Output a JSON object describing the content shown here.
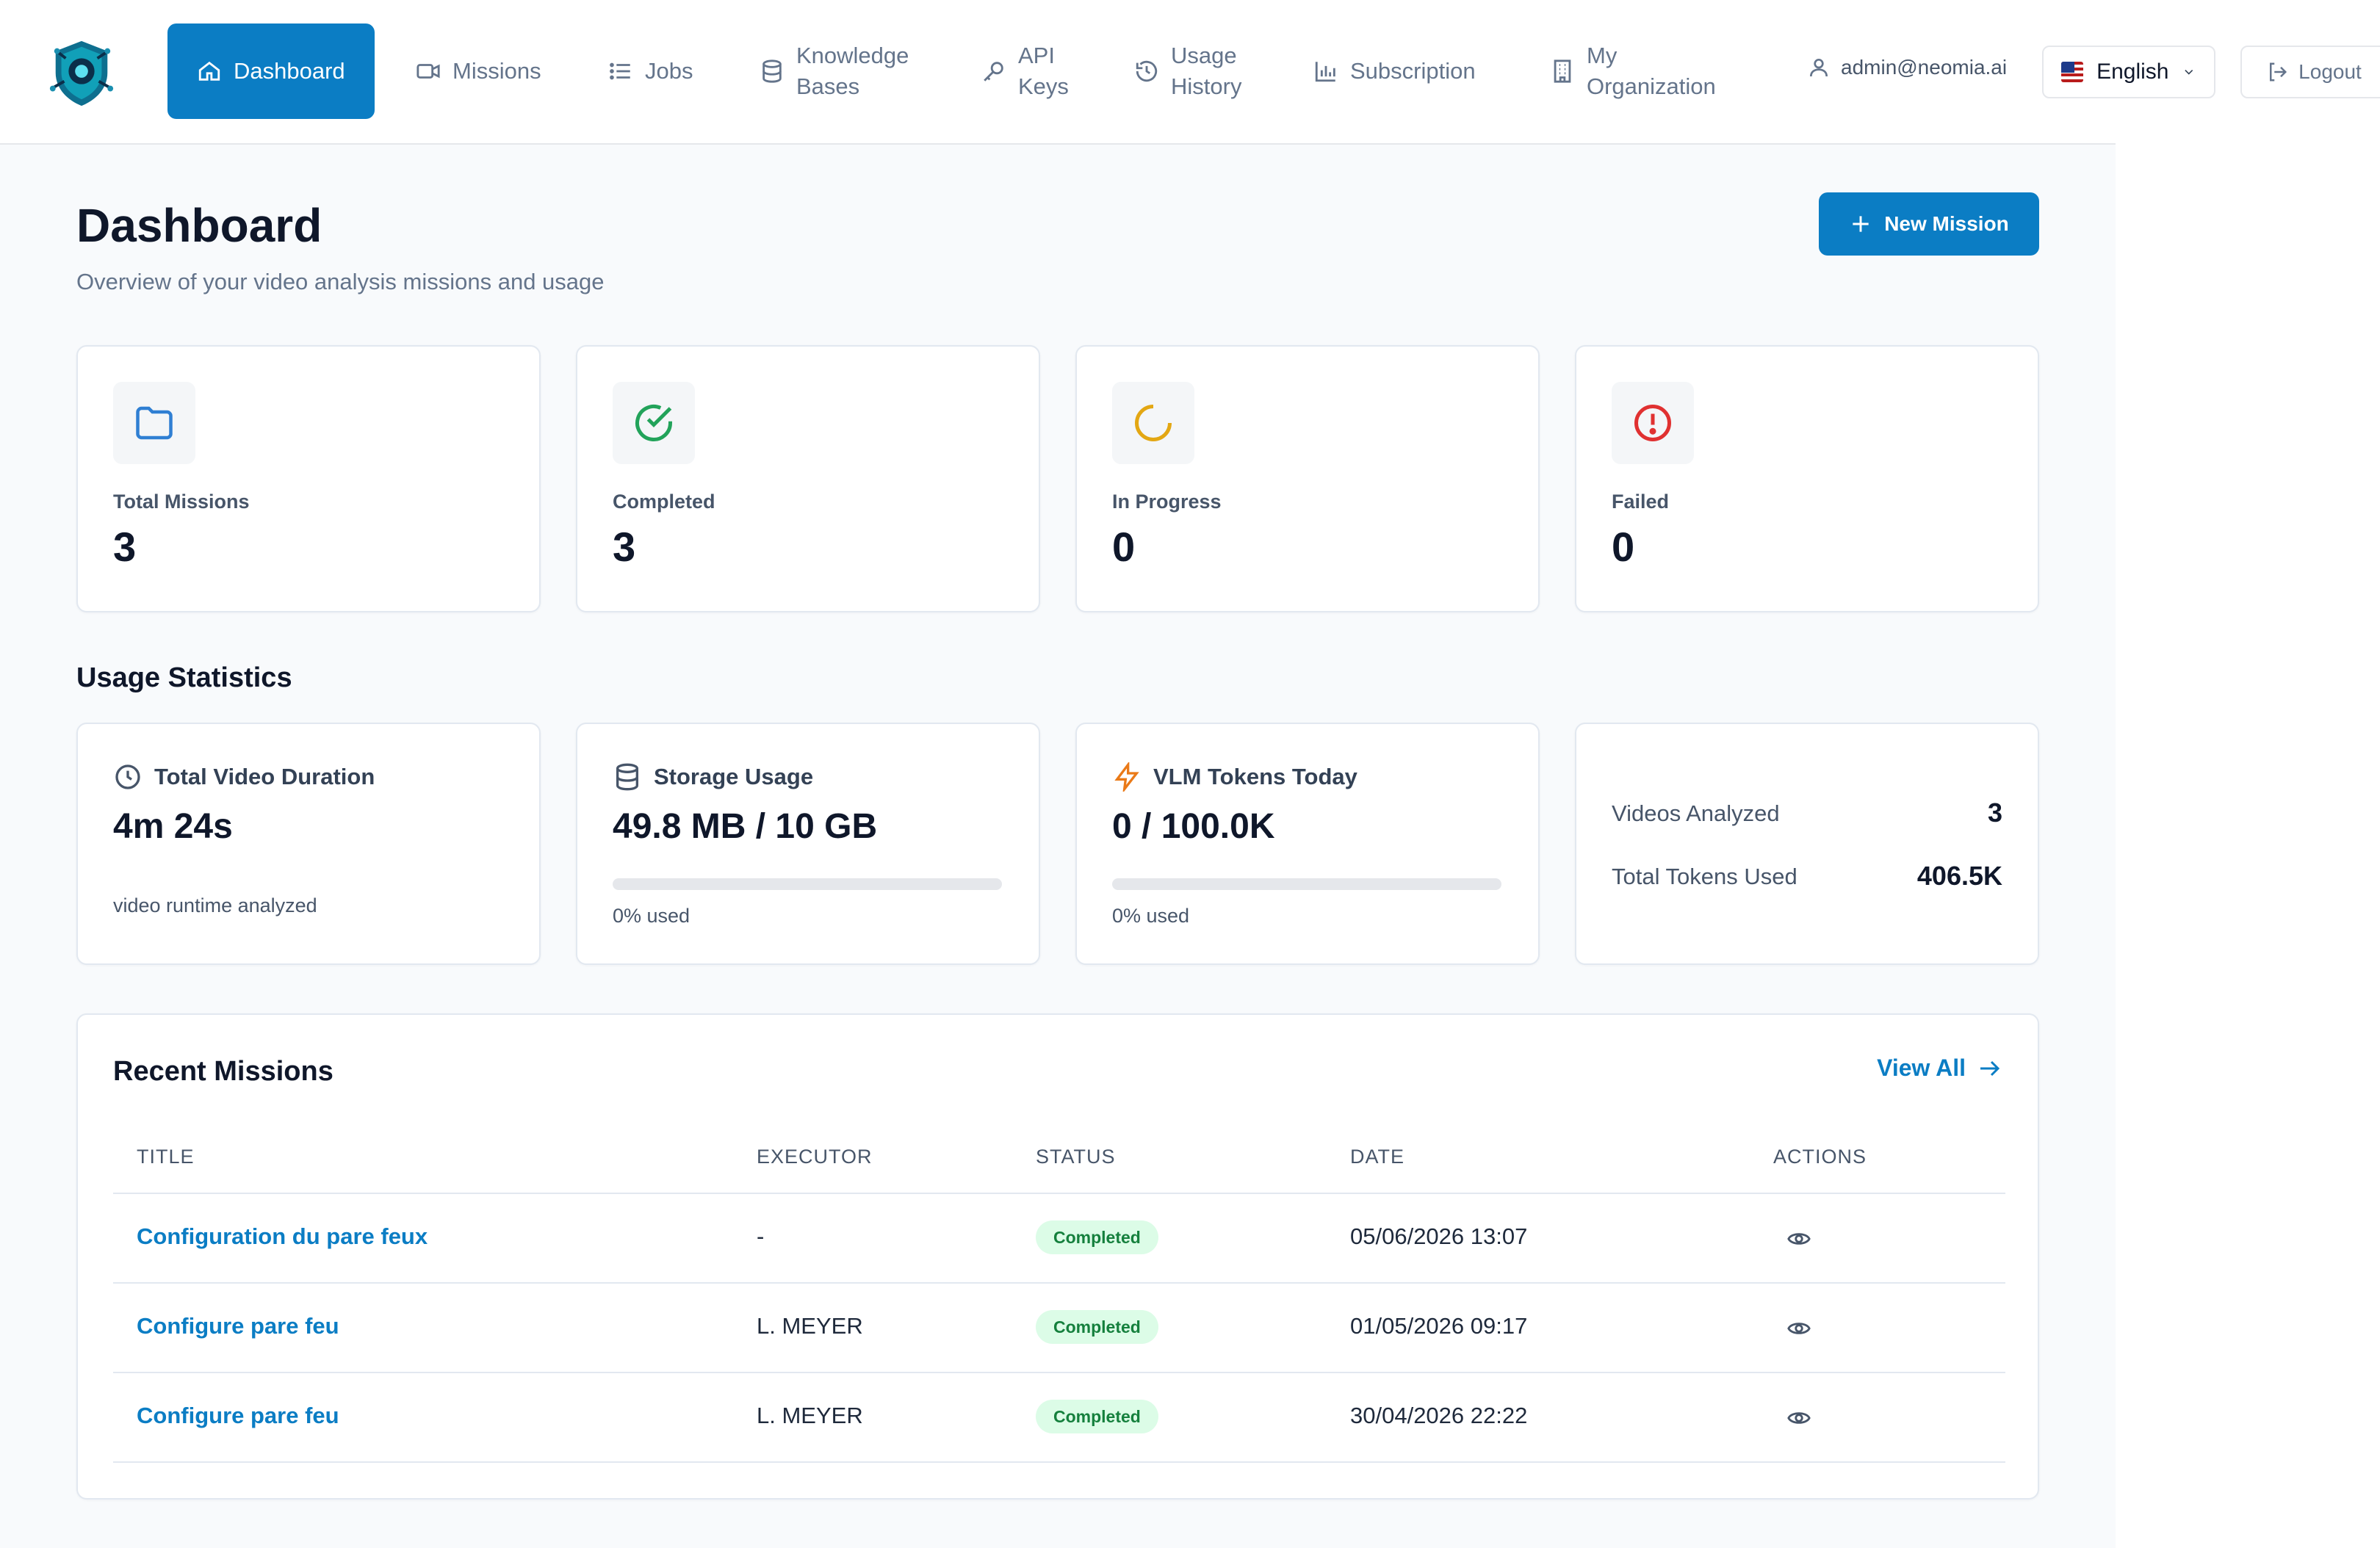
{
  "nav": {
    "items": [
      {
        "label": "Dashboard",
        "icon": "home-icon",
        "active": true
      },
      {
        "label": "Missions",
        "icon": "video-icon"
      },
      {
        "label": "Jobs",
        "icon": "list-icon"
      },
      {
        "label": "Knowledge\nBases",
        "icon": "database-icon"
      },
      {
        "label": "API\nKeys",
        "icon": "key-icon"
      },
      {
        "label": "Usage\nHistory",
        "icon": "history-icon"
      },
      {
        "label": "Subscription",
        "icon": "bar-chart-icon"
      },
      {
        "label": "My\nOrganization",
        "icon": "building-icon"
      }
    ],
    "user_email": "admin@neomia.ai",
    "language": "English",
    "logout_label": "Logout"
  },
  "header": {
    "title": "Dashboard",
    "subtitle": "Overview of your video analysis missions and usage",
    "new_mission_label": "New Mission"
  },
  "stats": [
    {
      "label": "Total Missions",
      "value": "3",
      "icon": "folder-icon",
      "color": "#2f7fd3"
    },
    {
      "label": "Completed",
      "value": "3",
      "icon": "check-circle-icon",
      "color": "#22a35a"
    },
    {
      "label": "In Progress",
      "value": "0",
      "icon": "loader-icon",
      "color": "#e3a713"
    },
    {
      "label": "Failed",
      "value": "0",
      "icon": "alert-circle-icon",
      "color": "#e03131"
    }
  ],
  "usage": {
    "section_title": "Usage Statistics",
    "video_duration": {
      "label": "Total Video Duration",
      "value": "4m 24s",
      "sub": "video runtime analyzed",
      "icon": "clock-icon"
    },
    "storage": {
      "label": "Storage Usage",
      "value": "49.8 MB / 10 GB",
      "sub": "0% used",
      "percent": 0,
      "icon": "database-icon"
    },
    "tokens": {
      "label": "VLM Tokens Today",
      "value": "0 / 100.0K",
      "sub": "0% used",
      "percent": 0,
      "icon": "bolt-icon"
    },
    "summary": {
      "videos_label": "Videos Analyzed",
      "videos_value": "3",
      "tokens_label": "Total Tokens Used",
      "tokens_value": "406.5K"
    }
  },
  "recent": {
    "title": "Recent Missions",
    "view_all_label": "View All",
    "columns": [
      "TITLE",
      "EXECUTOR",
      "STATUS",
      "DATE",
      "ACTIONS"
    ],
    "rows": [
      {
        "title": "Configuration du pare feux",
        "executor": "-",
        "status": "Completed",
        "date": "05/06/2026 13:07"
      },
      {
        "title": "Configure pare feu",
        "executor": "L. MEYER",
        "status": "Completed",
        "date": "01/05/2026 09:17"
      },
      {
        "title": "Configure pare feu",
        "executor": "L. MEYER",
        "status": "Completed",
        "date": "30/04/2026 22:22"
      }
    ]
  },
  "colors": {
    "accent": "#0b7dc4",
    "status_completed_bg": "#dcfce7",
    "status_completed_text": "#15803d"
  }
}
